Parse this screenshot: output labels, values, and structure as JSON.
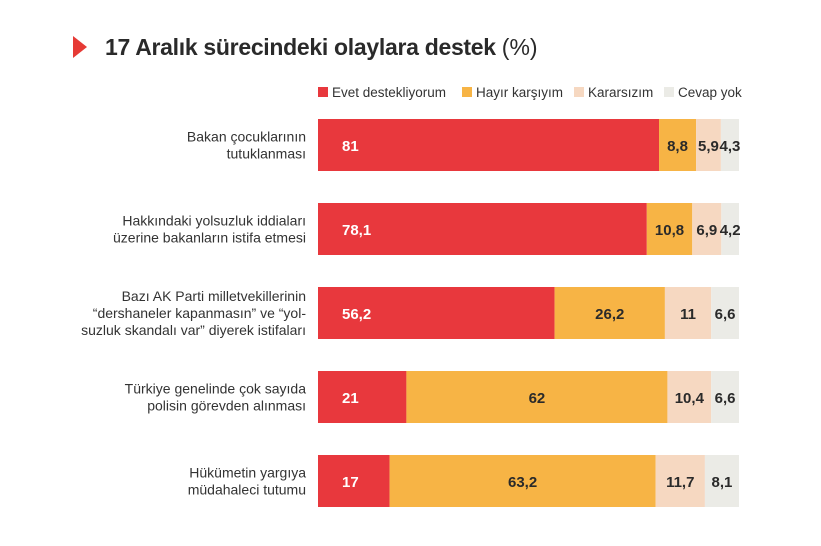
{
  "title": "17 Aralık sürecindeki olaylara destek",
  "title_unit": "(%)",
  "chart_data": {
    "type": "bar",
    "orientation": "horizontal",
    "stacked": true,
    "legend_position": "top-right",
    "categories": [
      [
        "Bakan çocuklarının",
        "tutuklanması"
      ],
      [
        "Hakkındaki yolsuzluk iddiaları",
        "üzerine bakanların istifa etmesi"
      ],
      [
        "Bazı AK Parti milletvekillerinin",
        "“dershaneler kapanmasın” ve “yol-",
        "suzluk skandalı var” diyerek istifaları"
      ],
      [
        "Türkiye genelinde çok sayıda",
        "polisin görevden alınması"
      ],
      [
        "Hükümetin yargıya",
        "müdahaleci tutumu"
      ]
    ],
    "series": [
      {
        "name": "Evet destekliyorum",
        "color": "#e8383d",
        "values": [
          81,
          78.1,
          56.2,
          21,
          17
        ],
        "labels": [
          "81",
          "78,1",
          "56,2",
          "21",
          "17"
        ]
      },
      {
        "name": "Hayır karşıyım",
        "color": "#f7b445",
        "values": [
          8.8,
          10.8,
          26.2,
          62,
          63.2
        ],
        "labels": [
          "8,8",
          "10,8",
          "26,2",
          "62",
          "63,2"
        ]
      },
      {
        "name": "Kararsızım",
        "color": "#f6d8c1",
        "values": [
          5.9,
          6.9,
          11,
          10.4,
          11.7
        ],
        "labels": [
          "5,9",
          "6,9",
          "11",
          "10,4",
          "11,7"
        ]
      },
      {
        "name": "Cevap yok",
        "color": "#ebebe6",
        "values": [
          4.3,
          4.2,
          6.6,
          6.6,
          8.1
        ],
        "labels": [
          "4,3",
          "4,2",
          "6,6",
          "6,6",
          "8,1"
        ]
      }
    ]
  }
}
